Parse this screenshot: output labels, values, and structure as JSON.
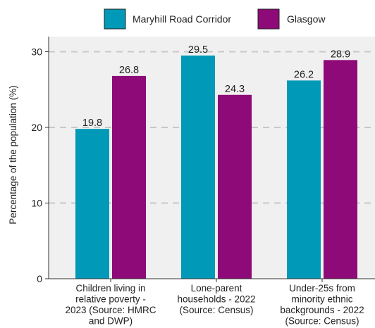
{
  "chart_data": {
    "type": "bar",
    "title": "",
    "xlabel": "",
    "ylabel": "Percentage of the population (%)",
    "ylim": [
      0,
      32
    ],
    "yticks": [
      0,
      10,
      20,
      30
    ],
    "grid": true,
    "legend_position": "top",
    "categories": [
      [
        "Children living in",
        "relative poverty -",
        "2023 (Source: HMRC",
        "and DWP)"
      ],
      [
        "Lone-parent",
        "households - 2022",
        "(Source: Census)"
      ],
      [
        "Under-25s from",
        "minority ethnic",
        "backgrounds - 2022",
        "(Source: Census)"
      ]
    ],
    "series": [
      {
        "name": "Maryhill Road Corridor",
        "color": "#0099b8",
        "values": [
          19.8,
          29.5,
          26.2
        ]
      },
      {
        "name": "Glasgow",
        "color": "#8e0a78",
        "values": [
          26.8,
          24.3,
          28.9
        ]
      }
    ],
    "colors": {
      "plot_background": "#f0f0f0",
      "gridline": "#c8c8c8",
      "axis": "#333333"
    }
  }
}
